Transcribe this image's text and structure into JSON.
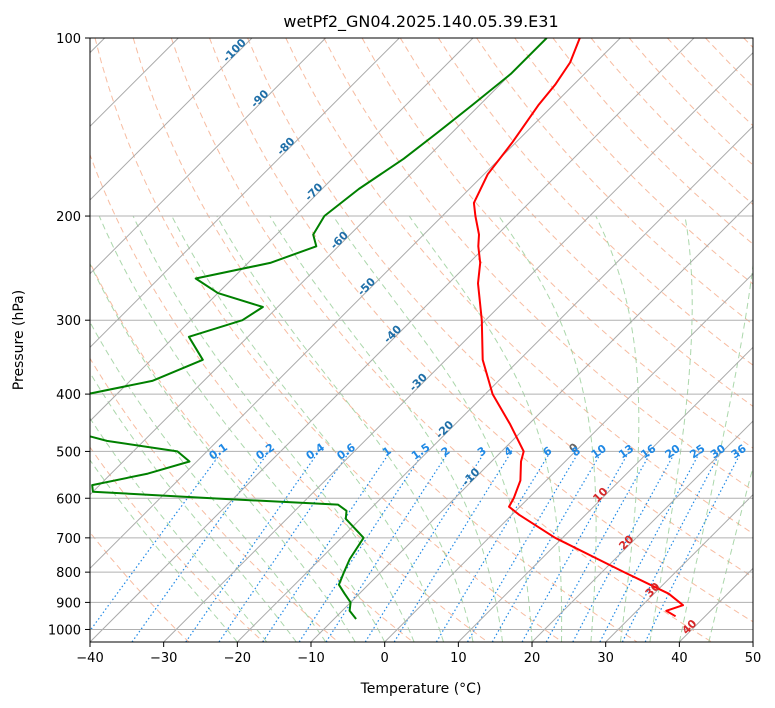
{
  "chart_data": {
    "type": "line",
    "title": "wetPf2_GN04.2025.140.05.39.E31",
    "xlabel": "Temperature (°C)",
    "ylabel": "Pressure (hPa)",
    "xlim": [
      -40,
      50
    ],
    "ylim": [
      1050,
      100
    ],
    "y_scale": "log",
    "x_ticks": [
      -40,
      -30,
      -20,
      -10,
      0,
      10,
      20,
      30,
      40,
      50
    ],
    "y_ticks": [
      100,
      200,
      300,
      400,
      500,
      600,
      700,
      800,
      900,
      1000
    ],
    "grid": true,
    "series": [
      {
        "role": "temperature",
        "color": "#ff0000",
        "pressure": [
          100,
          110,
          120,
          130,
          150,
          170,
          190,
          200,
          215,
          225,
          240,
          260,
          300,
          350,
          400,
          450,
          500,
          520,
          560,
          600,
          620,
          640,
          700,
          800,
          870,
          910,
          930,
          950
        ],
        "values": [
          -55.5,
          -53.5,
          -52.5,
          -52,
          -50.5,
          -49.5,
          -47.5,
          -45.5,
          -42.5,
          -41,
          -38.5,
          -36,
          -30.5,
          -25,
          -19,
          -12.5,
          -7,
          -6,
          -3.5,
          -2,
          -1.5,
          1,
          9,
          23,
          32,
          35.5,
          34,
          36
        ]
      },
      {
        "role": "dewpoint",
        "color": "#008000",
        "pressure": [
          100,
          115,
          130,
          145,
          160,
          180,
          200,
          215,
          225,
          240,
          255,
          270,
          285,
          300,
          320,
          350,
          380,
          400,
          420,
          440,
          460,
          480,
          500,
          520,
          545,
          570,
          585,
          600,
          615,
          630,
          650,
          700,
          760,
          800,
          840,
          870,
          900,
          930,
          960
        ],
        "values": [
          -60,
          -60,
          -61,
          -62,
          -63,
          -65,
          -66,
          -65,
          -63,
          -67,
          -75,
          -70,
          -62,
          -63,
          -68,
          -63,
          -67,
          -74,
          -73,
          -72,
          -72,
          -65,
          -54,
          -51,
          -55,
          -61,
          -60,
          -43,
          -25,
          -23,
          -22,
          -17,
          -16,
          -15,
          -14,
          -12,
          -10,
          -9,
          -7
        ]
      }
    ],
    "isotherm_labels": [
      "-100",
      "-90",
      "-80",
      "-70",
      "-60",
      "-50",
      "-40",
      "-30",
      "-20",
      "-10",
      "0",
      "10",
      "20",
      "30",
      "40"
    ],
    "mixing_ratio_labels": [
      "0.1",
      "0.2",
      "0.4",
      "0.6",
      "1",
      "1.5",
      "2",
      "3",
      "4",
      "6",
      "8",
      "10",
      "13",
      "16",
      "20",
      "25",
      "30",
      "36"
    ],
    "mixing_ratio_values": [
      0.1,
      0.2,
      0.4,
      0.6,
      1,
      1.5,
      2,
      3,
      4,
      6,
      8,
      10,
      13,
      16,
      20,
      25,
      30,
      36
    ],
    "colors": {
      "dry_adiabat": "#f4a582",
      "moist_adiabat": "#8fc98f",
      "mixing_ratio": "#1e88e5",
      "isotherm_neg": "#1f6fa8",
      "isotherm_zero": "#666666",
      "isotherm_pos": "#d62728"
    }
  }
}
